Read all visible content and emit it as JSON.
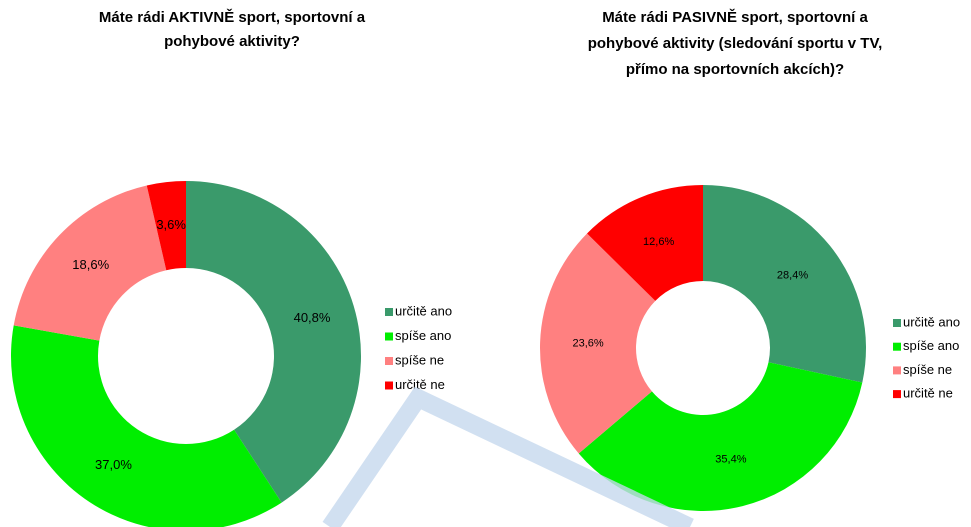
{
  "chart_data": [
    {
      "type": "donut",
      "title": [
        "Máte rádi AKTIVNĚ sport, sportovní a",
        "pohybové aktivity?"
      ],
      "categories": [
        "určitě ano",
        "spíše ano",
        "spíše ne",
        "určitě ne"
      ],
      "values": [
        40.8,
        37.0,
        18.6,
        3.6
      ],
      "value_labels": [
        "40,8%",
        "37,0%",
        "18,6%",
        "3,6%"
      ],
      "colors": [
        "#3a9a6b",
        "#00ee00",
        "#ff8080",
        "#ff0000"
      ],
      "legend": "right"
    },
    {
      "type": "donut",
      "title": [
        "Máte rádi PASIVNĚ sport, sportovní a",
        "pohybové aktivity (sledování sportu v TV,",
        "přímo na sportovních akcích)?"
      ],
      "categories": [
        "určitě ano",
        "spíše ano",
        "spíše ne",
        "určitě ne"
      ],
      "values": [
        28.4,
        35.4,
        23.6,
        12.6
      ],
      "value_labels": [
        "28,4%",
        "35,4%",
        "23,6%",
        "12,6%"
      ],
      "colors": [
        "#3a9a6b",
        "#00ee00",
        "#ff8080",
        "#ff0000"
      ],
      "legend": "right"
    }
  ]
}
